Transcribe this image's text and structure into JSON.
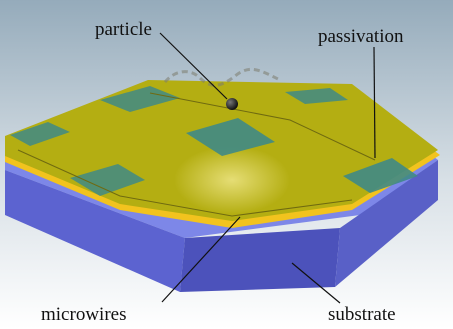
{
  "labels": {
    "particle": "particle",
    "passivation": "passivation",
    "microwires": "microwires",
    "substrate": "substrate"
  },
  "colors": {
    "background_top": "#9fb5c4",
    "background_bottom": "#ffffff",
    "substrate_top": "#7a84e6",
    "substrate_side": "#5b63cf",
    "substrate_front": "#4b51b8",
    "gold": "#b3ad12",
    "gold_edge": "#f0c020",
    "passivation": "#3f8a86",
    "particle": "#111111",
    "leader_line": "#111111"
  }
}
